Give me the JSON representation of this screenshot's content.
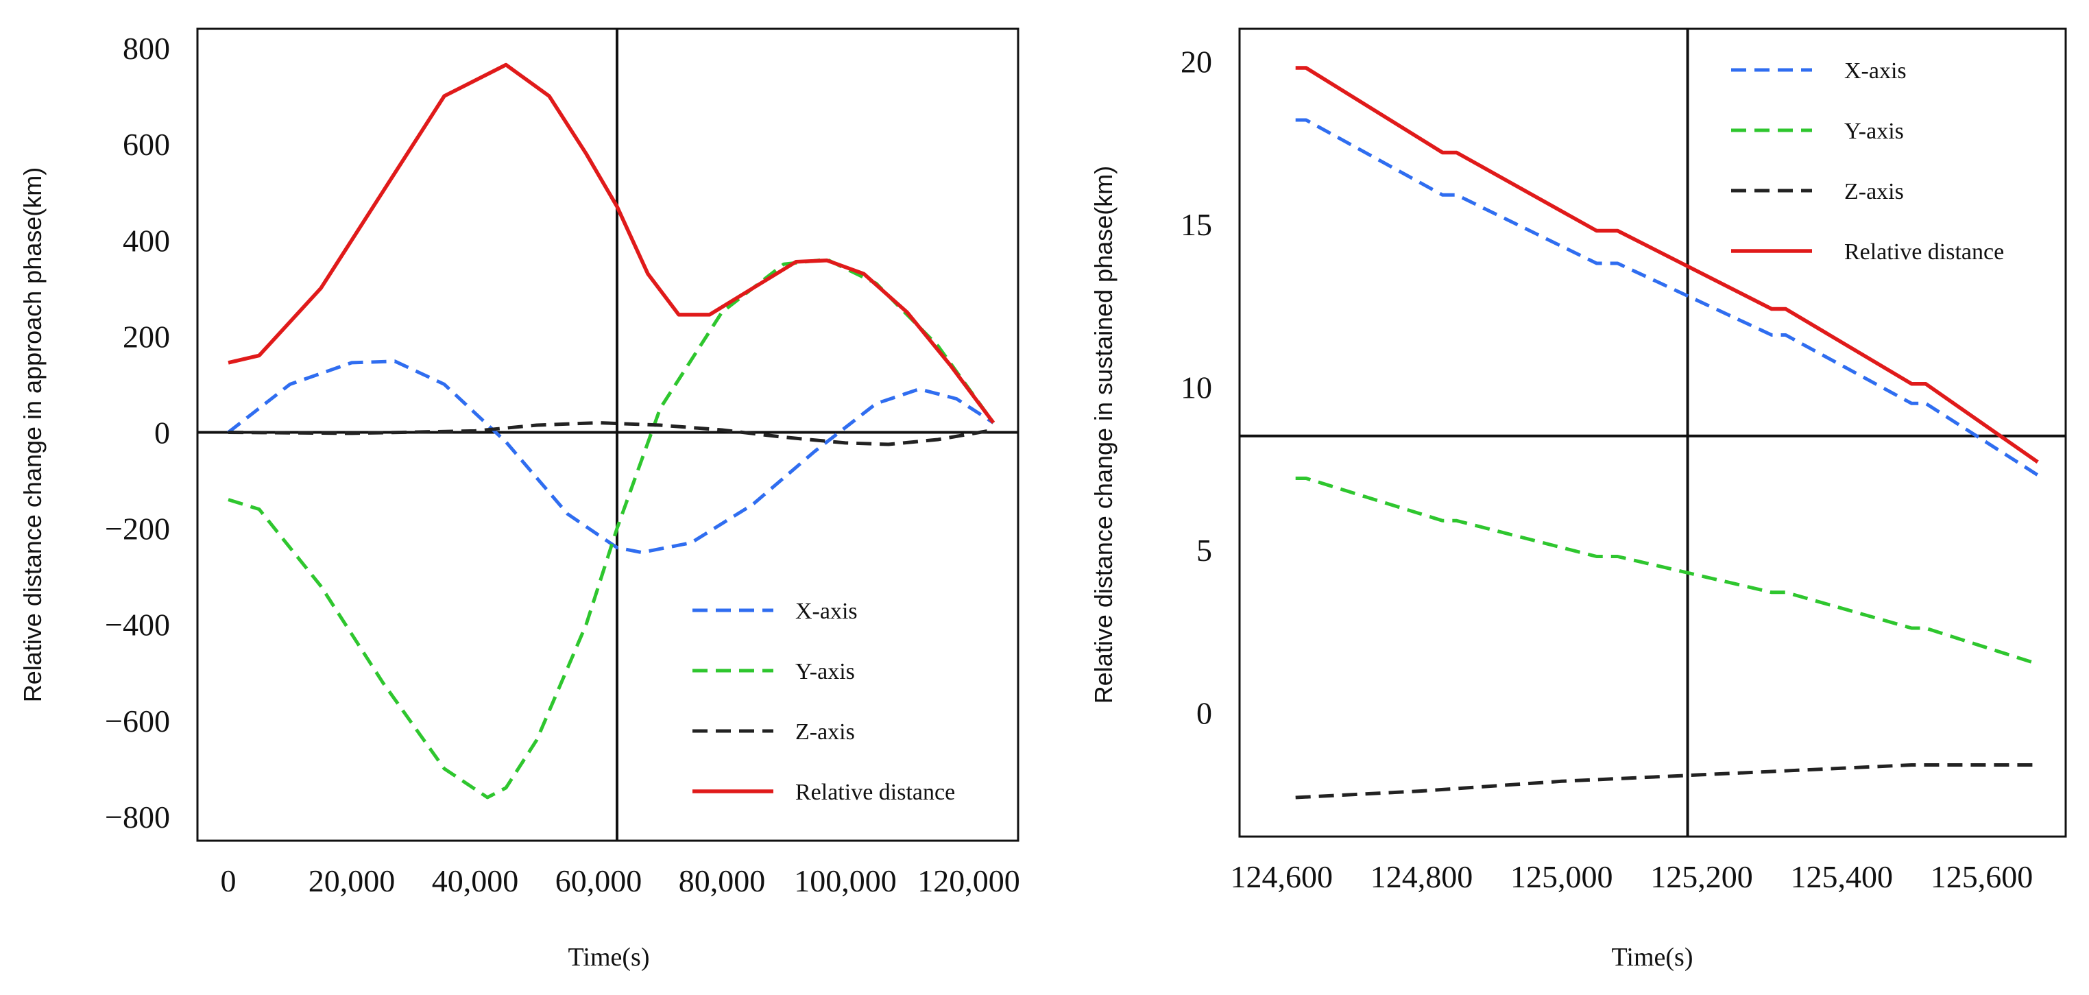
{
  "colors": {
    "x_axis": "#2f6df0",
    "y_axis": "#2ec62e",
    "z_axis": "#222222",
    "relative": "#e01a1a",
    "frame": "#111111"
  },
  "chart_data": [
    {
      "type": "line",
      "xlabel": "Time(s)",
      "ylabel": "Relative distance change in approach phase(km)",
      "xlim": [
        -5000,
        128000
      ],
      "ylim": [
        -850,
        840
      ],
      "xticks": [
        0,
        20000,
        40000,
        60000,
        80000,
        100000,
        120000
      ],
      "xtick_labels": [
        "0",
        "20,000",
        "40,000",
        "60,000",
        "80,000",
        "100,000",
        "120,000"
      ],
      "yticks": [
        -800,
        -600,
        -400,
        -200,
        0,
        200,
        400,
        600,
        800
      ],
      "ytick_labels": [
        "−800",
        "−600",
        "−400",
        "−200",
        "0",
        "200",
        "400",
        "600",
        "800"
      ],
      "crosshair": {
        "x": 63000,
        "y": 0
      },
      "legend_position": "bottom-right",
      "series": [
        {
          "name": "X-axis",
          "key": "x_axis",
          "dash": true,
          "x": [
            0,
            10000,
            20000,
            27000,
            35000,
            45000,
            55000,
            63000,
            67000,
            75000,
            85000,
            95000,
            105000,
            112000,
            118000,
            124000
          ],
          "y": [
            0,
            100,
            145,
            148,
            100,
            -20,
            -170,
            -240,
            -250,
            -230,
            -150,
            -40,
            60,
            90,
            70,
            20
          ]
        },
        {
          "name": "Y-axis",
          "key": "y_axis",
          "dash": true,
          "x": [
            0,
            5000,
            15000,
            25000,
            35000,
            42000,
            45000,
            50000,
            58000,
            63000,
            70000,
            80000,
            90000,
            97000,
            105000,
            115000,
            124000
          ],
          "y": [
            -140,
            -160,
            -320,
            -520,
            -700,
            -760,
            -740,
            -640,
            -400,
            -200,
            50,
            250,
            350,
            360,
            310,
            180,
            20
          ]
        },
        {
          "name": "Z-axis",
          "key": "z_axis",
          "dash": true,
          "x": [
            0,
            20000,
            40000,
            50000,
            60000,
            70000,
            80000,
            90000,
            100000,
            107000,
            115000,
            124000
          ],
          "y": [
            0,
            -2,
            3,
            15,
            20,
            15,
            5,
            -10,
            -22,
            -25,
            -15,
            5
          ]
        },
        {
          "name": "Relative distance",
          "key": "relative",
          "dash": false,
          "x": [
            0,
            5000,
            15000,
            25000,
            35000,
            45000,
            52000,
            58000,
            63000,
            68000,
            73000,
            78000,
            85000,
            92000,
            97000,
            103000,
            110000,
            117000,
            124000
          ],
          "y": [
            145,
            160,
            300,
            500,
            700,
            765,
            700,
            580,
            470,
            330,
            245,
            245,
            300,
            355,
            358,
            330,
            250,
            140,
            20
          ]
        }
      ]
    },
    {
      "type": "line",
      "xlabel": "Time(s)",
      "ylabel": "Relative distance change in sustained phase(km)",
      "xlim": [
        124540,
        125720
      ],
      "ylim": [
        -3.8,
        21
      ],
      "xticks": [
        124600,
        124800,
        125000,
        125200,
        125400,
        125600
      ],
      "xtick_labels": [
        "124,600",
        "124,800",
        "125,000",
        "125,200",
        "125,400",
        "125,600"
      ],
      "yticks": [
        0,
        5,
        10,
        15,
        20
      ],
      "ytick_labels": [
        "0",
        "5",
        "10",
        "15",
        "20"
      ],
      "crosshair": {
        "x": 125180,
        "y": 8.5
      },
      "legend_position": "top-right",
      "series": [
        {
          "name": "X-axis",
          "key": "x_axis",
          "dash": true,
          "x": [
            124620,
            124635,
            124830,
            124850,
            125050,
            125080,
            125300,
            125320,
            125500,
            125520,
            125680
          ],
          "y": [
            18.2,
            18.2,
            15.9,
            15.9,
            13.8,
            13.8,
            11.6,
            11.6,
            9.5,
            9.5,
            7.3
          ]
        },
        {
          "name": "Y-axis",
          "key": "y_axis",
          "dash": true,
          "x": [
            124620,
            124635,
            124830,
            124850,
            125050,
            125080,
            125300,
            125320,
            125500,
            125520,
            125680
          ],
          "y": [
            7.2,
            7.2,
            5.9,
            5.9,
            4.8,
            4.8,
            3.7,
            3.7,
            2.6,
            2.6,
            1.5
          ]
        },
        {
          "name": "Z-axis",
          "key": "z_axis",
          "dash": true,
          "x": [
            124620,
            124800,
            125000,
            125200,
            125400,
            125500,
            125680
          ],
          "y": [
            -2.6,
            -2.4,
            -2.1,
            -1.9,
            -1.7,
            -1.6,
            -1.6
          ]
        },
        {
          "name": "Relative distance",
          "key": "relative",
          "dash": false,
          "x": [
            124620,
            124635,
            124830,
            124850,
            125050,
            125080,
            125300,
            125320,
            125500,
            125520,
            125680
          ],
          "y": [
            19.8,
            19.8,
            17.2,
            17.2,
            14.8,
            14.8,
            12.4,
            12.4,
            10.1,
            10.1,
            7.7
          ]
        }
      ]
    }
  ]
}
